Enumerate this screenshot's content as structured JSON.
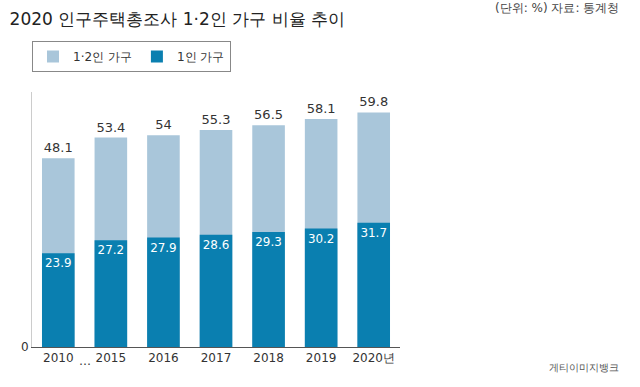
{
  "chart_data": {
    "type": "bar",
    "title": "2020 인구주택총조사 1·2인 가구 비율 추이",
    "subtitle": "(단위: %) 자료: 통계청",
    "credit": "게티이미지뱅크",
    "axis_break": "…",
    "categories": [
      "2010",
      "2015",
      "2016",
      "2017",
      "2018",
      "2019",
      "2020년"
    ],
    "series": [
      {
        "name": "1·2인 가구",
        "color": "#a9c6da",
        "values": [
          48.1,
          53.4,
          54,
          55.3,
          56.5,
          58.1,
          59.8
        ]
      },
      {
        "name": "1인 가구",
        "color": "#0a7fb0",
        "values": [
          23.9,
          27.2,
          27.9,
          28.6,
          29.3,
          30.2,
          31.7
        ]
      }
    ],
    "stacked": false,
    "data_labels": true,
    "legend": "top left",
    "grid": false,
    "ylim": [
      0,
      65
    ],
    "yticks": [
      0
    ]
  }
}
